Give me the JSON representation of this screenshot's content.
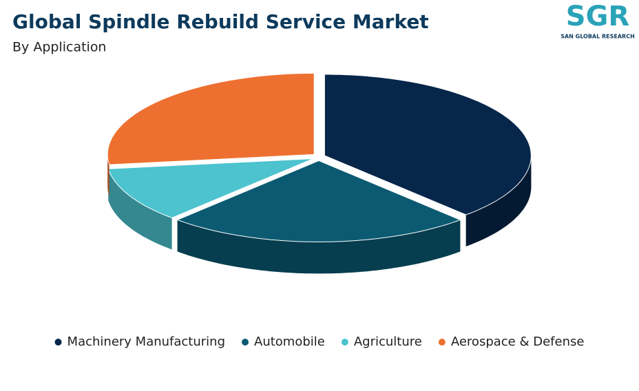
{
  "chart_data": {
    "type": "pie",
    "title": "Global Spindle Rebuild Service Market",
    "subtitle": "By Application",
    "categories": [
      "Machinery Manufacturing",
      "Automobile",
      "Agriculture",
      "Aerospace & Defense"
    ],
    "values": [
      38,
      24,
      11,
      27
    ],
    "colors": [
      "#06264a",
      "#0b5a72",
      "#4cc3ce",
      "#ee7030"
    ],
    "legend": "bottom"
  },
  "logo": {
    "mark": "SGR",
    "name": "SAN GLOBAL RESEARCH"
  }
}
